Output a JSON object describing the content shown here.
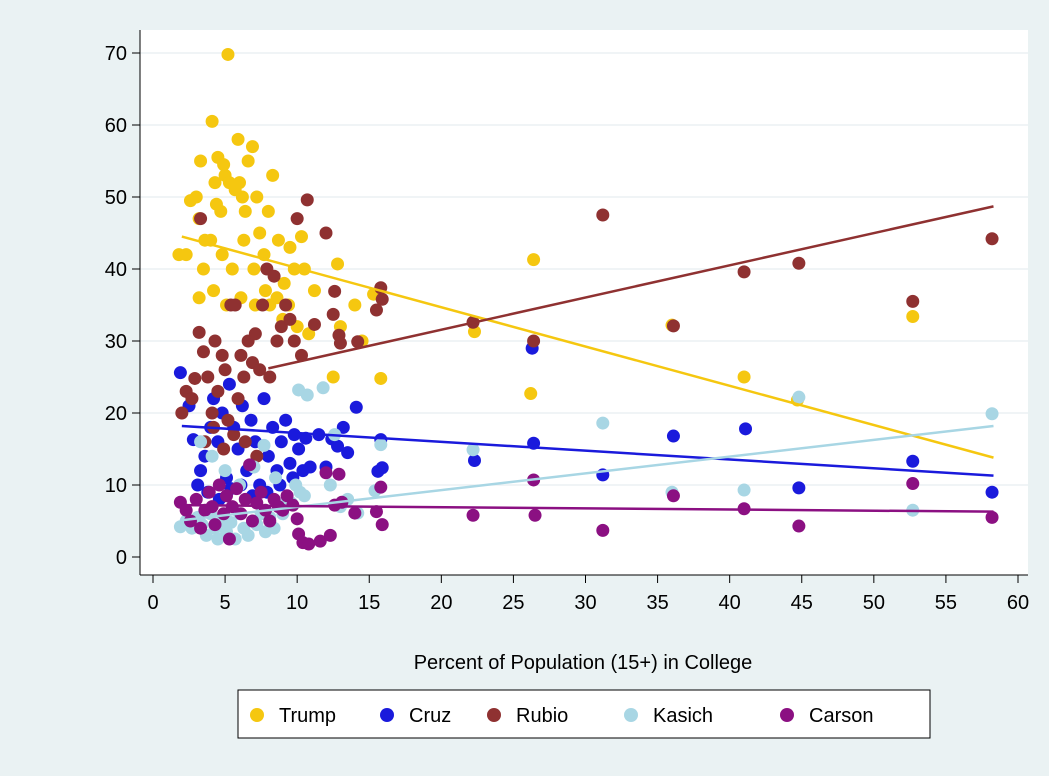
{
  "chart_data": {
    "type": "scatter",
    "xlabel": "Percent of Population (15+) in College",
    "ylabel": "",
    "xlim": [
      0,
      60
    ],
    "ylim": [
      0,
      70
    ],
    "x_ticks": [
      0,
      5,
      10,
      15,
      20,
      25,
      30,
      35,
      40,
      45,
      50,
      55,
      60
    ],
    "y_ticks": [
      0,
      10,
      20,
      30,
      40,
      50,
      60,
      70
    ],
    "grid": "horizontal",
    "legend": "bottom",
    "series": [
      {
        "name": "Trump",
        "color": "#f5c710",
        "points": [
          [
            1.8,
            42
          ],
          [
            2.3,
            42
          ],
          [
            2.6,
            49.5
          ],
          [
            3,
            50
          ],
          [
            3.3,
            55
          ],
          [
            3.2,
            47
          ],
          [
            3.6,
            44
          ],
          [
            4.1,
            60.5
          ],
          [
            4.3,
            52
          ],
          [
            4.4,
            49
          ],
          [
            4.5,
            55.5
          ],
          [
            4.7,
            48
          ],
          [
            4.9,
            54.5
          ],
          [
            5.0,
            53
          ],
          [
            5.2,
            69.8
          ],
          [
            5.3,
            52
          ],
          [
            5.7,
            51
          ],
          [
            5.9,
            58
          ],
          [
            6.0,
            52
          ],
          [
            6.2,
            50
          ],
          [
            6.4,
            48
          ],
          [
            6.6,
            55
          ],
          [
            6.9,
            57
          ],
          [
            7.2,
            50
          ],
          [
            7.4,
            45
          ],
          [
            7.7,
            42
          ],
          [
            8.0,
            48
          ],
          [
            8.3,
            53
          ],
          [
            8.7,
            44
          ],
          [
            9.1,
            38
          ],
          [
            9.5,
            43
          ],
          [
            9.8,
            40
          ],
          [
            10.3,
            44.5
          ],
          [
            10.5,
            40
          ],
          [
            3.5,
            40
          ],
          [
            4.0,
            44
          ],
          [
            4.8,
            42
          ],
          [
            5.5,
            40
          ],
          [
            6.3,
            44
          ],
          [
            7.0,
            40
          ],
          [
            7.8,
            37
          ],
          [
            8.6,
            36
          ],
          [
            9.4,
            35
          ],
          [
            3.2,
            36
          ],
          [
            4.2,
            37
          ],
          [
            5.1,
            35
          ],
          [
            6.1,
            36
          ],
          [
            7.1,
            35
          ],
          [
            8.1,
            35
          ],
          [
            9.0,
            33
          ],
          [
            10.0,
            32
          ],
          [
            10.8,
            31
          ],
          [
            11.2,
            37
          ],
          [
            12.5,
            25
          ],
          [
            12.8,
            40.7
          ],
          [
            13.0,
            32
          ],
          [
            14.0,
            35
          ],
          [
            14.5,
            30
          ],
          [
            15.3,
            36.5
          ],
          [
            15.8,
            24.8
          ],
          [
            22.3,
            31.3
          ],
          [
            26.2,
            22.7
          ],
          [
            26.4,
            41.3
          ],
          [
            36,
            32.2
          ],
          [
            41,
            25
          ],
          [
            44.7,
            21.8
          ],
          [
            52.7,
            33.4
          ]
        ]
      },
      {
        "name": "Cruz",
        "color": "#1a1adc",
        "points": [
          [
            1.9,
            25.6
          ],
          [
            2.5,
            21
          ],
          [
            2.8,
            16.3
          ],
          [
            3.1,
            10
          ],
          [
            3.3,
            12
          ],
          [
            3.6,
            14
          ],
          [
            4.0,
            18
          ],
          [
            4.2,
            22
          ],
          [
            4.5,
            16
          ],
          [
            4.8,
            20
          ],
          [
            5.1,
            11
          ],
          [
            5.3,
            24
          ],
          [
            5.6,
            18
          ],
          [
            5.9,
            15
          ],
          [
            6.2,
            21
          ],
          [
            6.5,
            12
          ],
          [
            6.8,
            19
          ],
          [
            7.1,
            16
          ],
          [
            7.4,
            10
          ],
          [
            7.7,
            22
          ],
          [
            8.0,
            14
          ],
          [
            8.3,
            18
          ],
          [
            8.6,
            12
          ],
          [
            8.9,
            16
          ],
          [
            9.2,
            19
          ],
          [
            9.5,
            13
          ],
          [
            9.8,
            17
          ],
          [
            10.1,
            15
          ],
          [
            10.4,
            12
          ],
          [
            10.6,
            16.5
          ],
          [
            3.8,
            9
          ],
          [
            4.6,
            8
          ],
          [
            5.4,
            9.5
          ],
          [
            6.1,
            10
          ],
          [
            6.9,
            8.5
          ],
          [
            7.9,
            9
          ],
          [
            8.8,
            10
          ],
          [
            9.7,
            11
          ],
          [
            10.9,
            12.5
          ],
          [
            11.5,
            17
          ],
          [
            12.0,
            12.5
          ],
          [
            12.4,
            16.4
          ],
          [
            12.8,
            15.4
          ],
          [
            13.2,
            18
          ],
          [
            13.5,
            14.5
          ],
          [
            14.1,
            20.8
          ],
          [
            15.6,
            11.9
          ],
          [
            15.8,
            16.3
          ],
          [
            15.9,
            12.4
          ],
          [
            22.3,
            13.4
          ],
          [
            26.3,
            29
          ],
          [
            26.4,
            15.8
          ],
          [
            31.2,
            11.4
          ],
          [
            36.1,
            16.8
          ],
          [
            41.1,
            17.8
          ],
          [
            44.8,
            9.6
          ],
          [
            52.7,
            13.3
          ],
          [
            58.2,
            9
          ]
        ]
      },
      {
        "name": "Rubio",
        "color": "#8f3131",
        "points": [
          [
            2,
            20
          ],
          [
            2.3,
            23
          ],
          [
            2.7,
            22
          ],
          [
            2.9,
            24.8
          ],
          [
            3.2,
            31.2
          ],
          [
            3.3,
            47
          ],
          [
            3.5,
            28.5
          ],
          [
            3.8,
            25
          ],
          [
            4.1,
            20
          ],
          [
            4.3,
            30
          ],
          [
            4.5,
            23
          ],
          [
            4.8,
            28
          ],
          [
            5.0,
            26
          ],
          [
            5.2,
            19
          ],
          [
            5.4,
            35
          ],
          [
            5.7,
            35
          ],
          [
            5.9,
            22
          ],
          [
            6.1,
            28
          ],
          [
            6.3,
            25
          ],
          [
            6.6,
            30
          ],
          [
            6.9,
            27
          ],
          [
            7.1,
            31
          ],
          [
            7.4,
            26
          ],
          [
            7.6,
            35
          ],
          [
            7.9,
            40
          ],
          [
            8.1,
            25
          ],
          [
            8.4,
            39
          ],
          [
            8.6,
            30
          ],
          [
            8.9,
            32
          ],
          [
            9.2,
            35
          ],
          [
            9.5,
            33
          ],
          [
            9.8,
            30
          ],
          [
            10.0,
            47
          ],
          [
            10.3,
            28
          ],
          [
            10.7,
            49.6
          ],
          [
            3.6,
            16
          ],
          [
            4.2,
            18
          ],
          [
            4.9,
            15
          ],
          [
            5.6,
            17
          ],
          [
            6.4,
            16
          ],
          [
            7.2,
            14
          ],
          [
            11.2,
            32.3
          ],
          [
            12.0,
            45
          ],
          [
            12.5,
            33.7
          ],
          [
            12.6,
            36.9
          ],
          [
            12.9,
            30.8
          ],
          [
            13.0,
            29.7
          ],
          [
            14.2,
            29.9
          ],
          [
            15.5,
            34.3
          ],
          [
            15.8,
            37.4
          ],
          [
            15.9,
            35.8
          ],
          [
            22.2,
            32.6
          ],
          [
            26.4,
            30
          ],
          [
            31.2,
            47.5
          ],
          [
            36.1,
            32.1
          ],
          [
            41,
            39.6
          ],
          [
            44.8,
            40.8
          ],
          [
            52.7,
            35.5
          ],
          [
            58.2,
            44.2
          ]
        ]
      },
      {
        "name": "Kasich",
        "color": "#a8d6e4",
        "points": [
          [
            1.9,
            4.2
          ],
          [
            2.3,
            5
          ],
          [
            2.7,
            4
          ],
          [
            3.1,
            5.5
          ],
          [
            3.4,
            4.5
          ],
          [
            3.7,
            3
          ],
          [
            4.0,
            6
          ],
          [
            4.3,
            4
          ],
          [
            4.5,
            2.5
          ],
          [
            4.8,
            5
          ],
          [
            5.1,
            3.5
          ],
          [
            5.4,
            4.8
          ],
          [
            5.7,
            2.5
          ],
          [
            6.0,
            6
          ],
          [
            6.3,
            4
          ],
          [
            6.6,
            3
          ],
          [
            6.9,
            5
          ],
          [
            7.2,
            4.5
          ],
          [
            7.5,
            6
          ],
          [
            7.8,
            3.5
          ],
          [
            8.1,
            5.5
          ],
          [
            8.4,
            4
          ],
          [
            8.7,
            7
          ],
          [
            9.0,
            6
          ],
          [
            9.3,
            8
          ],
          [
            9.6,
            7.5
          ],
          [
            9.9,
            10
          ],
          [
            10.2,
            9
          ],
          [
            10.5,
            8.5
          ],
          [
            3.3,
            16
          ],
          [
            4.1,
            14
          ],
          [
            5.0,
            12
          ],
          [
            6.0,
            10
          ],
          [
            7.0,
            12.5
          ],
          [
            7.7,
            15.5
          ],
          [
            8.5,
            11
          ],
          [
            10.1,
            23.2
          ],
          [
            10.7,
            22.5
          ],
          [
            11.8,
            23.5
          ],
          [
            12.3,
            10
          ],
          [
            12.6,
            17
          ],
          [
            13.0,
            7
          ],
          [
            13.5,
            8
          ],
          [
            14.2,
            6.1
          ],
          [
            15.4,
            9.2
          ],
          [
            15.8,
            15.6
          ],
          [
            22.2,
            14.9
          ],
          [
            31.2,
            18.6
          ],
          [
            36,
            9
          ],
          [
            41,
            9.3
          ],
          [
            44.8,
            22.2
          ],
          [
            52.7,
            6.5
          ],
          [
            58.2,
            19.9
          ]
        ]
      },
      {
        "name": "Carson",
        "color": "#8b1082",
        "points": [
          [
            1.9,
            7.6
          ],
          [
            2.3,
            6.5
          ],
          [
            2.6,
            5
          ],
          [
            3.0,
            8
          ],
          [
            3.3,
            4
          ],
          [
            3.6,
            6.5
          ],
          [
            3.9,
            9
          ],
          [
            4.1,
            7
          ],
          [
            4.3,
            4.5
          ],
          [
            4.6,
            10
          ],
          [
            4.9,
            6
          ],
          [
            5.1,
            8.5
          ],
          [
            5.3,
            2.5
          ],
          [
            5.5,
            7
          ],
          [
            5.8,
            9.5
          ],
          [
            6.1,
            6
          ],
          [
            6.4,
            8
          ],
          [
            6.7,
            12.8
          ],
          [
            6.9,
            5
          ],
          [
            7.2,
            7.5
          ],
          [
            7.5,
            9
          ],
          [
            7.8,
            6.5
          ],
          [
            8.1,
            5
          ],
          [
            8.4,
            8
          ],
          [
            8.7,
            7
          ],
          [
            9.0,
            6.5
          ],
          [
            9.3,
            8.5
          ],
          [
            9.7,
            7.2
          ],
          [
            10.0,
            5.3
          ],
          [
            10.1,
            3.2
          ],
          [
            10.4,
            2
          ],
          [
            10.8,
            1.8
          ],
          [
            11.6,
            2.2
          ],
          [
            12.0,
            11.7
          ],
          [
            12.3,
            3
          ],
          [
            12.6,
            7.2
          ],
          [
            12.9,
            11.5
          ],
          [
            13.1,
            7.6
          ],
          [
            14.0,
            6.1
          ],
          [
            15.5,
            6.3
          ],
          [
            15.8,
            9.7
          ],
          [
            15.9,
            4.5
          ],
          [
            22.2,
            5.8
          ],
          [
            26.4,
            10.7
          ],
          [
            26.5,
            5.8
          ],
          [
            31.2,
            3.7
          ],
          [
            36.1,
            8.5
          ],
          [
            41,
            6.7
          ],
          [
            44.8,
            4.3
          ],
          [
            52.7,
            10.2
          ],
          [
            58.2,
            5.5
          ]
        ]
      }
    ],
    "fit_lines": [
      {
        "name": "Trump",
        "color": "#f5c710",
        "from": [
          2,
          44.5
        ],
        "to": [
          58.3,
          13.8
        ]
      },
      {
        "name": "Cruz",
        "color": "#1a1adc",
        "from": [
          2,
          18.2
        ],
        "to": [
          58.3,
          11.3
        ]
      },
      {
        "name": "Rubio",
        "color": "#8f3131",
        "from": [
          8,
          26.2
        ],
        "to": [
          58.3,
          48.7
        ]
      },
      {
        "name": "Kasich",
        "color": "#a8d6e4",
        "from": [
          2,
          5.1
        ],
        "to": [
          58.3,
          18.2
        ]
      },
      {
        "name": "Carson",
        "color": "#8b1082",
        "from": [
          2,
          7.2
        ],
        "to": [
          58.3,
          6.3
        ]
      }
    ]
  }
}
